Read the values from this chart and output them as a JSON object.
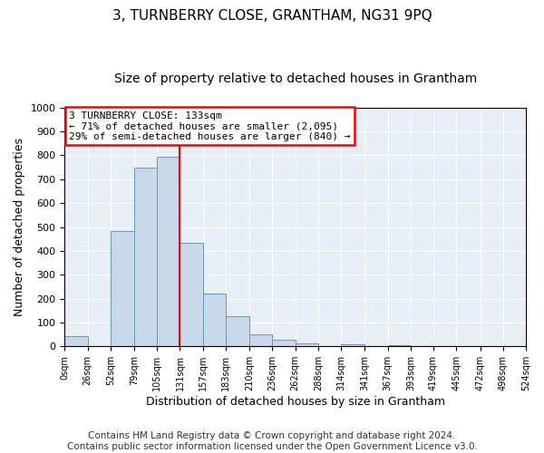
{
  "title": "3, TURNBERRY CLOSE, GRANTHAM, NG31 9PQ",
  "subtitle": "Size of property relative to detached houses in Grantham",
  "xlabel": "Distribution of detached houses by size in Grantham",
  "ylabel": "Number of detached properties",
  "bin_edges": [
    0,
    26,
    52,
    79,
    105,
    131,
    157,
    183,
    210,
    236,
    262,
    288,
    314,
    341,
    367,
    393,
    419,
    445,
    472,
    498,
    524
  ],
  "bin_values": [
    42,
    0,
    485,
    748,
    795,
    435,
    220,
    128,
    52,
    27,
    14,
    0,
    8,
    0,
    6,
    0,
    0,
    0,
    0,
    0
  ],
  "bar_color": "#c8d8eb",
  "bar_edge_color": "#6699bb",
  "property_line_x": 131,
  "property_line_color": "red",
  "annotation_line1": "3 TURNBERRY CLOSE: 133sqm",
  "annotation_line2": "← 71% of detached houses are smaller (2,095)",
  "annotation_line3": "29% of semi-detached houses are larger (840) →",
  "annotation_box_color": "red",
  "ylim": [
    0,
    1000
  ],
  "tick_labels": [
    "0sqm",
    "26sqm",
    "52sqm",
    "79sqm",
    "105sqm",
    "131sqm",
    "157sqm",
    "183sqm",
    "210sqm",
    "236sqm",
    "262sqm",
    "288sqm",
    "314sqm",
    "341sqm",
    "367sqm",
    "393sqm",
    "419sqm",
    "445sqm",
    "472sqm",
    "498sqm",
    "524sqm"
  ],
  "footer_line1": "Contains HM Land Registry data © Crown copyright and database right 2024.",
  "footer_line2": "Contains public sector information licensed under the Open Government Licence v3.0.",
  "bg_color": "#ffffff",
  "plot_bg_color": "#e8eef5",
  "grid_color": "#ffffff",
  "title_fontsize": 11,
  "subtitle_fontsize": 10,
  "ylabel_fontsize": 9,
  "xlabel_fontsize": 9,
  "tick_fontsize": 7,
  "footer_fontsize": 7.5
}
